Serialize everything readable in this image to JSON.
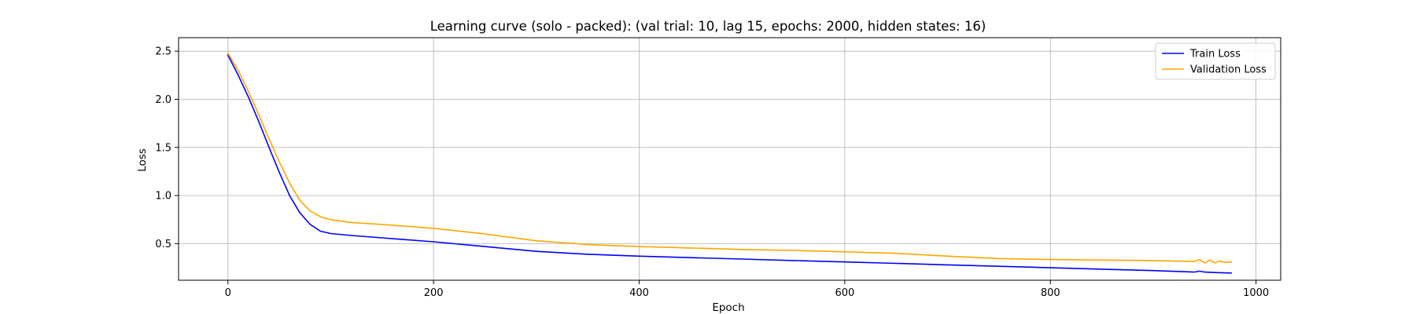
{
  "chart_data": {
    "type": "line",
    "title": "Learning curve (solo - packed): (val trial: 10, lag 15, epochs: 2000, hidden states: 16)",
    "xlabel": "Epoch",
    "ylabel": "Loss",
    "xlim": [
      -48,
      1024
    ],
    "ylim": [
      0.12,
      2.64
    ],
    "xticks": [
      0,
      200,
      400,
      600,
      800,
      1000
    ],
    "xtick_labels": [
      "0",
      "200",
      "400",
      "600",
      "800",
      "1000"
    ],
    "yticks": [
      0.5,
      1.0,
      1.5,
      2.0,
      2.5
    ],
    "ytick_labels": [
      "0.5",
      "1.0",
      "1.5",
      "2.0",
      "2.5"
    ],
    "grid": true,
    "legend_position": "top-right",
    "series": [
      {
        "name": "Train Loss",
        "color": "#0000ff",
        "x": [
          0,
          10,
          20,
          30,
          40,
          50,
          60,
          70,
          80,
          90,
          100,
          120,
          150,
          200,
          250,
          300,
          350,
          400,
          450,
          500,
          550,
          600,
          650,
          700,
          750,
          800,
          850,
          900,
          940,
          945,
          950,
          960,
          976
        ],
        "y": [
          2.46,
          2.25,
          2.02,
          1.77,
          1.5,
          1.24,
          1.0,
          0.82,
          0.7,
          0.63,
          0.605,
          0.585,
          0.56,
          0.52,
          0.47,
          0.42,
          0.39,
          0.37,
          0.355,
          0.34,
          0.325,
          0.31,
          0.295,
          0.28,
          0.265,
          0.25,
          0.235,
          0.22,
          0.205,
          0.215,
          0.205,
          0.2,
          0.195
        ]
      },
      {
        "name": "Validation Loss",
        "color": "#ffa500",
        "x": [
          0,
          10,
          20,
          30,
          40,
          50,
          60,
          70,
          80,
          90,
          100,
          120,
          150,
          200,
          250,
          300,
          350,
          400,
          450,
          500,
          550,
          600,
          650,
          700,
          750,
          800,
          850,
          900,
          940,
          945,
          950,
          955,
          960,
          965,
          970,
          976
        ],
        "y": [
          2.48,
          2.3,
          2.08,
          1.84,
          1.59,
          1.35,
          1.13,
          0.95,
          0.84,
          0.78,
          0.75,
          0.72,
          0.7,
          0.66,
          0.6,
          0.53,
          0.49,
          0.47,
          0.455,
          0.44,
          0.43,
          0.415,
          0.4,
          0.37,
          0.345,
          0.335,
          0.33,
          0.325,
          0.315,
          0.335,
          0.3,
          0.33,
          0.3,
          0.32,
          0.305,
          0.31
        ]
      }
    ]
  }
}
